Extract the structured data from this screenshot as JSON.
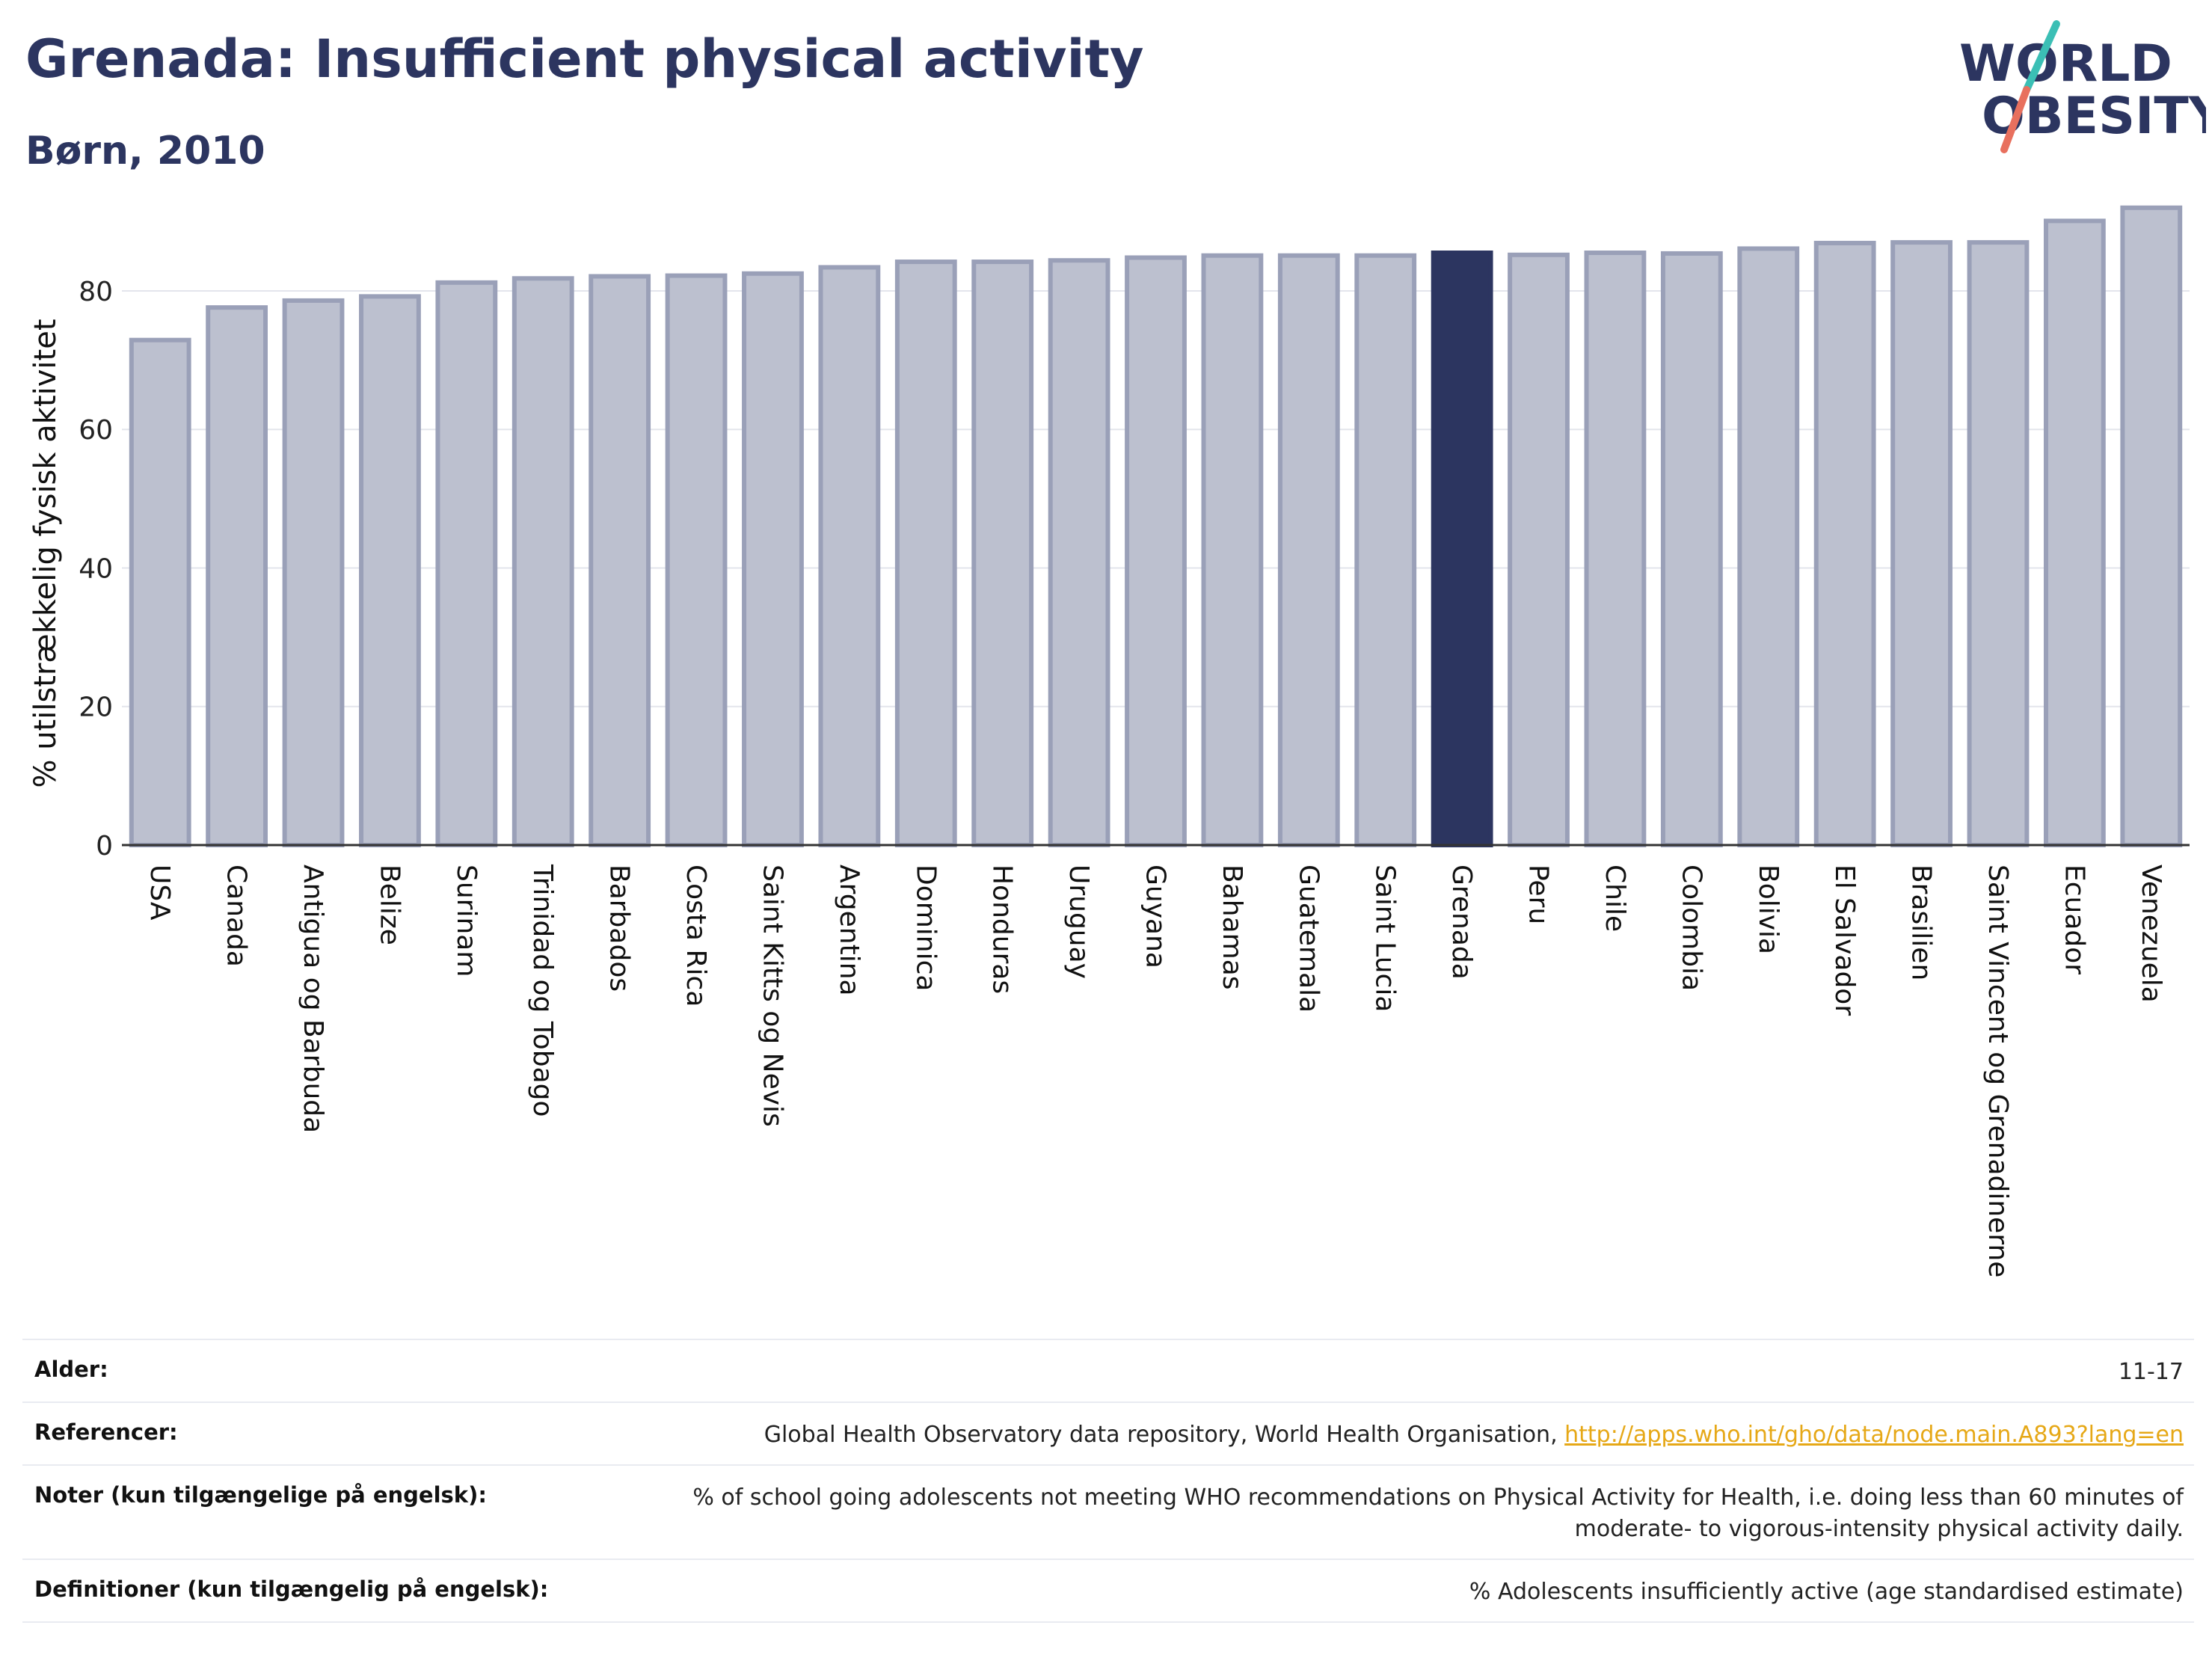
{
  "header": {
    "title": "Grenada: Insufficient physical activity",
    "subtitle": "Børn, 2010"
  },
  "logo": {
    "line1": "WORLD",
    "line2": "OBESITY",
    "colors": {
      "text": "#2c3560",
      "slash_teal": "#3bbfb5",
      "slash_coral": "#e8705e"
    }
  },
  "chart_data": {
    "type": "bar",
    "title": "",
    "xlabel": "",
    "ylabel": "% utilstrækkelig fysisk aktivitet",
    "ylim": [
      0,
      95
    ],
    "yticks": [
      0,
      20,
      40,
      60,
      80
    ],
    "grid": true,
    "highlight": "Grenada",
    "colors": {
      "bar": "#bcc0cf",
      "bar_border": "#9aa0b8",
      "highlight": "#2c3560"
    },
    "categories": [
      "USA",
      "Canada",
      "Antigua og Barbuda",
      "Belize",
      "Surinam",
      "Trinidad og Tobago",
      "Barbados",
      "Costa Rica",
      "Saint Kitts og Nevis",
      "Argentina",
      "Dominica",
      "Honduras",
      "Uruguay",
      "Guyana",
      "Bahamas",
      "Guatemala",
      "Saint Lucia",
      "Grenada",
      "Peru",
      "Chile",
      "Colombia",
      "Bolivia",
      "El Salvador",
      "Brasilien",
      "Saint Vincent og Grenadinerne",
      "Ecuador",
      "Venezuela"
    ],
    "values": [
      72.9,
      77.6,
      78.6,
      79.2,
      81.2,
      81.8,
      82.1,
      82.2,
      82.5,
      83.4,
      84.2,
      84.2,
      84.4,
      84.8,
      85.1,
      85.1,
      85.1,
      85.5,
      85.2,
      85.5,
      85.4,
      86.1,
      86.9,
      87.0,
      87.0,
      90.1,
      92.0
    ]
  },
  "info": {
    "rows": [
      {
        "label": "Alder:",
        "value": "11-17"
      },
      {
        "label": "Referencer:",
        "value": "Global Health Observatory data repository, World Health Organisation, ",
        "link": "http://apps.who.int/gho/data/node.main.A893?lang=en"
      },
      {
        "label": "Noter (kun tilgængelige på engelsk):",
        "value": "% of school going adolescents not meeting WHO recommendations on Physical Activity for Health, i.e. doing less than 60 minutes of moderate- to vigorous-intensity physical activity daily."
      },
      {
        "label": "Definitioner (kun tilgængelig på engelsk):",
        "value": "% Adolescents insufficiently active (age standardised estimate)"
      }
    ]
  }
}
